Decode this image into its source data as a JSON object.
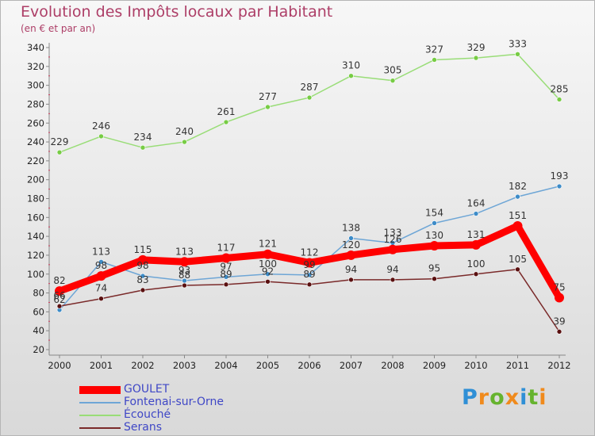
{
  "header": {
    "title": "Evolution des Impôts locaux par Habitant",
    "subtitle": "(en € et par an)"
  },
  "logo": {
    "letters": [
      "P",
      "r",
      "o",
      "x",
      "i",
      "t",
      "i"
    ],
    "colors": [
      "#2f8fd6",
      "#f08a1c",
      "#66b32e",
      "#f08a1c",
      "#2f8fd6",
      "#66b32e",
      "#f08a1c"
    ]
  },
  "chart_data": {
    "type": "line",
    "title": "Evolution des Impôts locaux par Habitant",
    "subtitle": "(en € et par an)",
    "xlabel": "",
    "ylabel": "",
    "ylim": [
      20,
      340
    ],
    "ytick_step": 20,
    "grid": false,
    "legend_position": "bottom-left",
    "x": [
      "2000",
      "2001",
      "2002",
      "2003",
      "2004",
      "2005",
      "2006",
      "2007",
      "2008",
      "2009",
      "2010",
      "2011",
      "2012"
    ],
    "series": [
      {
        "name": "Écouché",
        "color": "#99dd77",
        "marker": "#77cc44",
        "values": [
          229,
          246,
          234,
          240,
          261,
          277,
          287,
          310,
          305,
          327,
          329,
          333,
          285
        ],
        "labels": [
          "229",
          "246",
          "234",
          "240",
          "261",
          "277",
          "287",
          "310",
          "305",
          "327",
          "329",
          "333",
          "285"
        ]
      },
      {
        "name": "Fontenai-sur-Orne",
        "color": "#6ea6d6",
        "marker": "#3d8cc8",
        "values": [
          62,
          113,
          98,
          93,
          97,
          100,
          99,
          138,
          133,
          154,
          164,
          182,
          193
        ],
        "labels": [
          "62",
          "113",
          "98",
          "93",
          "97",
          "100",
          "99",
          "138",
          "133",
          "154",
          "164",
          "182",
          "193"
        ]
      },
      {
        "name": "Serans",
        "color": "#7a2a2a",
        "marker": "#5a1010",
        "values": [
          66,
          74,
          83,
          88,
          89,
          92,
          89,
          94,
          94,
          95,
          100,
          105,
          39
        ],
        "labels": [
          "66",
          "74",
          "83",
          "88",
          "89",
          "92",
          "89",
          "94",
          "94",
          "95",
          "100",
          "105",
          "39"
        ]
      },
      {
        "name": "GOULET",
        "color": "#ff0000",
        "marker": "#ff0000",
        "values": [
          82,
          98,
          115,
          113,
          117,
          121,
          112,
          120,
          126,
          130,
          131,
          151,
          75
        ],
        "labels": [
          "82",
          "98",
          "115",
          "113",
          "117",
          "121",
          "112",
          "120",
          "126",
          "130",
          "131",
          "151",
          "75"
        ]
      }
    ],
    "legend": [
      "GOULET",
      "Fontenai-sur-Orne",
      "Écouché",
      "Serans"
    ]
  }
}
